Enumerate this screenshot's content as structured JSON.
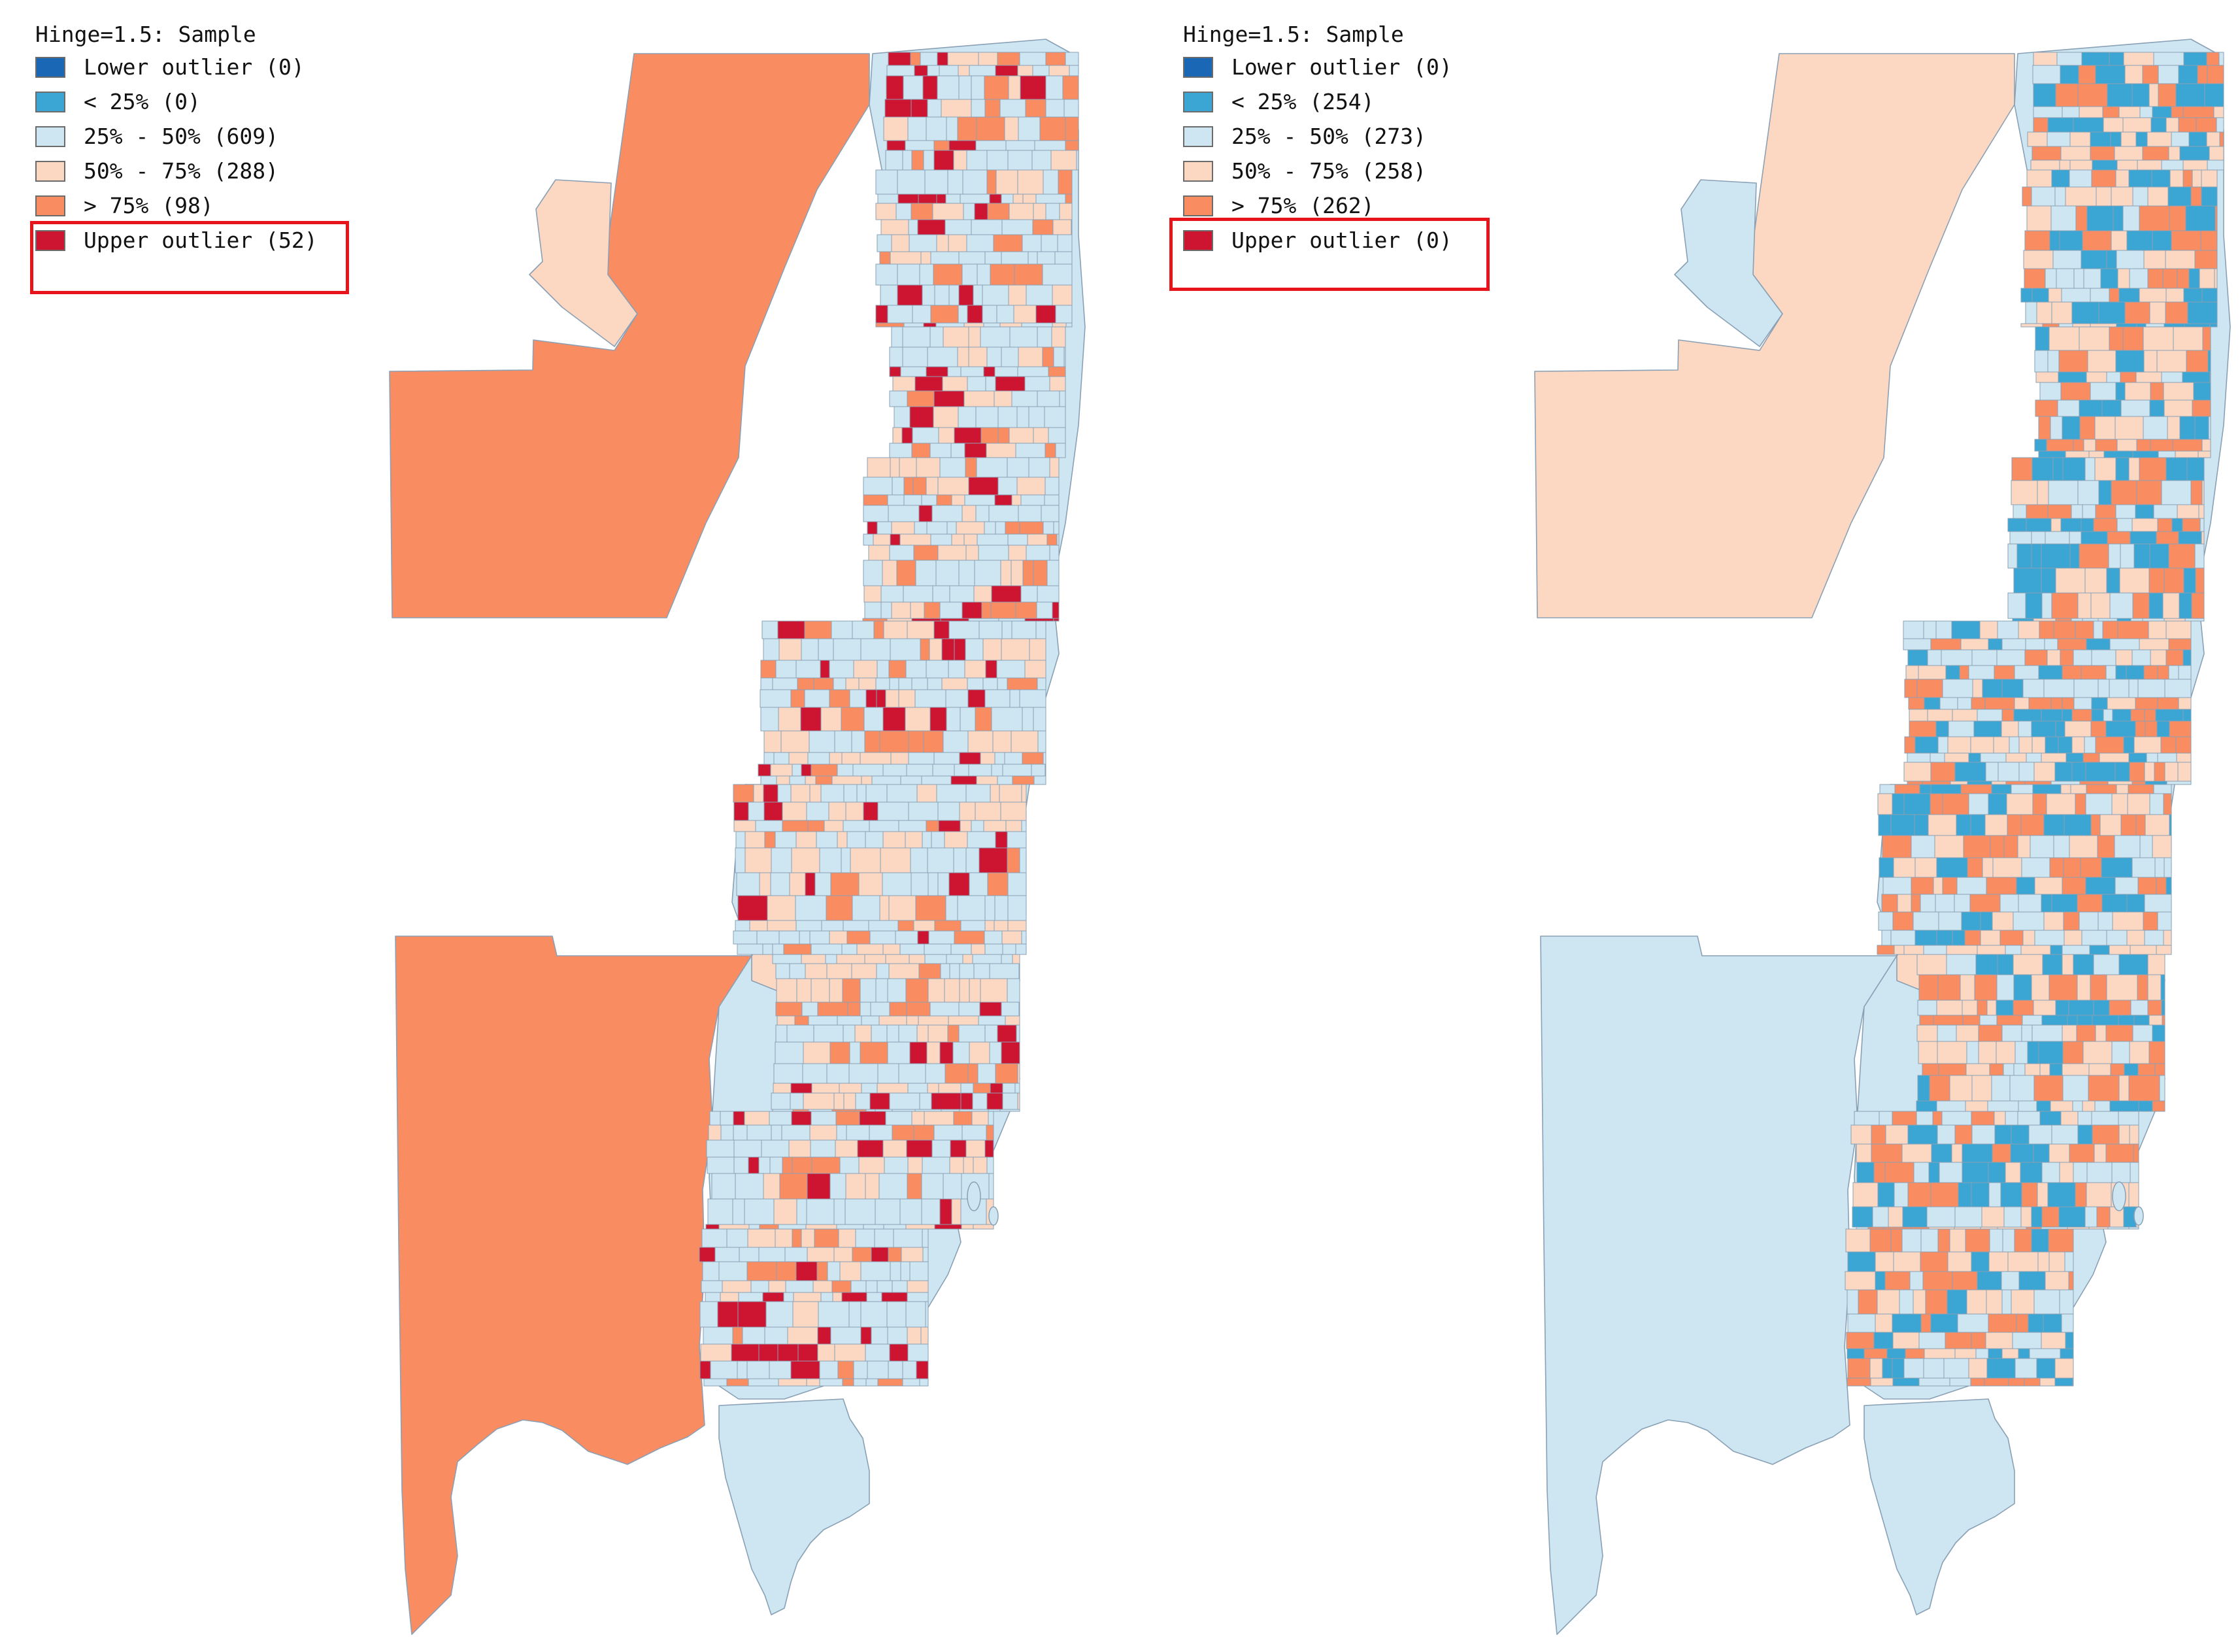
{
  "colors": {
    "lower_outlier": "#1967b5",
    "lt_25": "#3ba6d3",
    "p25_50": "#cde6f1",
    "p50_75": "#fcd7c2",
    "gt_75": "#fa8c61",
    "upper_outlier": "#cd1430",
    "tract_border": "#8aa0b5",
    "highlight": "#e8141b"
  },
  "maps": [
    {
      "legend": {
        "title": "Hinge=1.5: Sample",
        "items": [
          {
            "label": "Lower outlier (0)",
            "color": "#1967b5"
          },
          {
            "label": "< 25% (0)",
            "color": "#3ba6d3"
          },
          {
            "label": "25% - 50% (609)",
            "color": "#cde6f1"
          },
          {
            "label": "50% - 75% (288)",
            "color": "#fcd7c2"
          },
          {
            "label": "> 75% (98)",
            "color": "#fa8c61"
          },
          {
            "label": "Upper outlier (52)",
            "color": "#cd1430"
          }
        ]
      },
      "region_colors": {
        "west_north": "#fa8c61",
        "west_south": "#fa8c61",
        "ear": "#fcd7c2",
        "coast": "#cde6f1",
        "south_tip": "#cde6f1",
        "mid_strip": "#fcd7c2",
        "south_wedge": "#fcd7c2"
      },
      "tract_palette": [
        "#cde6f1",
        "#cde6f1",
        "#cde6f1",
        "#cde6f1",
        "#fcd7c2",
        "#fcd7c2",
        "#fa8c61",
        "#cd1430"
      ]
    },
    {
      "legend": {
        "title": "Hinge=1.5: Sample",
        "items": [
          {
            "label": "Lower outlier (0)",
            "color": "#1967b5"
          },
          {
            "label": "< 25% (254)",
            "color": "#3ba6d3"
          },
          {
            "label": "25% - 50% (273)",
            "color": "#cde6f1"
          },
          {
            "label": "50% - 75% (258)",
            "color": "#fcd7c2"
          },
          {
            "label": "> 75% (262)",
            "color": "#fa8c61"
          },
          {
            "label": "Upper outlier (0)",
            "color": "#cd1430"
          }
        ]
      },
      "region_colors": {
        "west_north": "#fcd7c2",
        "west_south": "#cde6f1",
        "ear": "#cde6f1",
        "coast": "#cde6f1",
        "south_tip": "#cde6f1",
        "mid_strip": "#fcd7c2",
        "south_wedge": "#fcd7c2"
      },
      "tract_palette": [
        "#3ba6d3",
        "#3ba6d3",
        "#cde6f1",
        "#cde6f1",
        "#fcd7c2",
        "#fcd7c2",
        "#fa8c61",
        "#fa8c61"
      ]
    }
  ]
}
